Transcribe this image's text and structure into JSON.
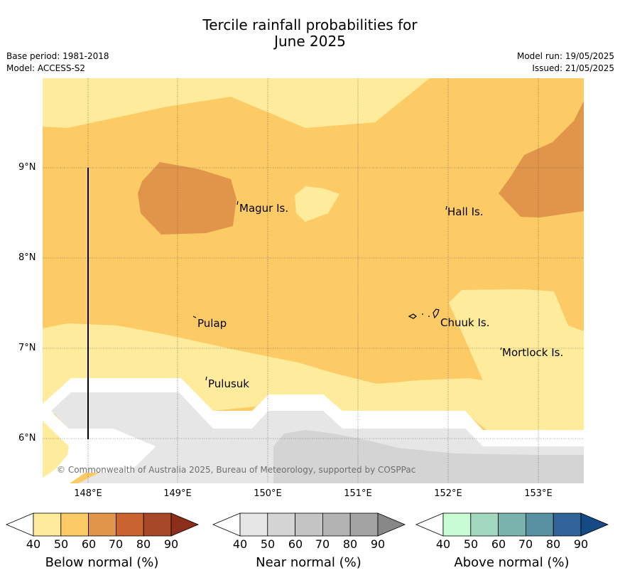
{
  "title": {
    "line1": "Tercile rainfall probabilities for",
    "line2": "June 2025"
  },
  "info_left": {
    "base_period": "Base period: 1981-2018",
    "model": "Model: ACCESS-S2"
  },
  "info_right": {
    "model_run": "Model run: 19/05/2025",
    "issued": "Issued: 21/05/2025"
  },
  "longitude_labels": [
    "148°E",
    "149°E",
    "150°E",
    "151°E",
    "152°E",
    "153°E"
  ],
  "latitude_labels": [
    "9°N",
    "8°N",
    "7°N",
    "6°N"
  ],
  "places": [
    "Magur Is.",
    "Hall Is.",
    "Pulap",
    "Chuuk Is.",
    "Mortlock Is.",
    "Pulusuk"
  ],
  "credit": "© Commonwealth of Australia 2025, Bureau of Meteorology, supported by COSPPac",
  "colorbars": [
    {
      "label": "Below normal (%)",
      "ticks": [
        "40",
        "50",
        "60",
        "70",
        "80",
        "90"
      ],
      "colors": [
        "#ffeb9c",
        "#fdcb65",
        "#e0954a",
        "#c9632f",
        "#a84826",
        "#8c2e1b"
      ]
    },
    {
      "label": "Near normal (%)",
      "ticks": [
        "40",
        "50",
        "60",
        "70",
        "80",
        "90"
      ],
      "colors": [
        "#e6e6e6",
        "#d4d4d4",
        "#c4c4c4",
        "#b3b3b3",
        "#a3a3a3",
        "#878787"
      ]
    },
    {
      "label": "Above normal (%)",
      "ticks": [
        "40",
        "50",
        "60",
        "70",
        "80",
        "90"
      ],
      "colors": [
        "#c8fcd2",
        "#a2d8bd",
        "#7ab3ad",
        "#5891a1",
        "#31639a",
        "#154a85"
      ]
    }
  ]
}
